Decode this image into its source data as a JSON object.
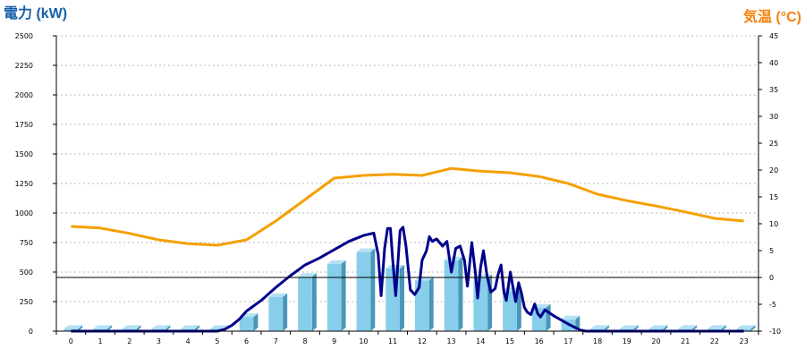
{
  "chart_data": {
    "type": "bar+line",
    "left_axis_title": "電力 (kW)",
    "right_axis_title": "気温 (°C)",
    "left_axis_color": "#1560a8",
    "right_axis_color": "#f5820d",
    "ylim_left": [
      0,
      2500
    ],
    "ylim_right": [
      -10,
      45
    ],
    "y_ticks_left": [
      "0",
      "250",
      "500",
      "750",
      "1000",
      "1250",
      "1500",
      "1750",
      "2000",
      "2250",
      "2500"
    ],
    "y_ticks_right": [
      "-10",
      "-5",
      "0",
      "5",
      "10",
      "15",
      "20",
      "25",
      "30",
      "35",
      "40",
      "45"
    ],
    "categories": [
      "0",
      "1",
      "2",
      "3",
      "4",
      "5",
      "6",
      "7",
      "8",
      "9",
      "10",
      "11",
      "12",
      "13",
      "14",
      "15",
      "16",
      "17",
      "18",
      "19",
      "20",
      "21",
      "22",
      "23"
    ],
    "grid": "horizontal dashed",
    "series": [
      {
        "kind": "bar",
        "axis": "left",
        "color": "#87ceeb",
        "values": [
          20,
          20,
          20,
          20,
          20,
          20,
          120,
          290,
          460,
          570,
          670,
          530,
          430,
          600,
          450,
          340,
          200,
          100,
          20,
          20,
          20,
          20,
          20,
          20
        ]
      },
      {
        "kind": "line",
        "axis": "left",
        "color": "#00008b",
        "points": [
          [
            0,
            0
          ],
          [
            5,
            0
          ],
          [
            5.25,
            15
          ],
          [
            5.5,
            50
          ],
          [
            5.75,
            100
          ],
          [
            6,
            170
          ],
          [
            6.5,
            260
          ],
          [
            7,
            370
          ],
          [
            7.5,
            470
          ],
          [
            8,
            560
          ],
          [
            8.5,
            620
          ],
          [
            9,
            690
          ],
          [
            9.5,
            760
          ],
          [
            10,
            810
          ],
          [
            10.35,
            830
          ],
          [
            10.5,
            650
          ],
          [
            10.6,
            300
          ],
          [
            10.72,
            700
          ],
          [
            10.82,
            870
          ],
          [
            10.92,
            870
          ],
          [
            11,
            600
          ],
          [
            11.1,
            300
          ],
          [
            11.25,
            850
          ],
          [
            11.35,
            880
          ],
          [
            11.45,
            720
          ],
          [
            11.6,
            350
          ],
          [
            11.75,
            310
          ],
          [
            11.9,
            370
          ],
          [
            12,
            600
          ],
          [
            12.15,
            680
          ],
          [
            12.25,
            800
          ],
          [
            12.35,
            760
          ],
          [
            12.5,
            780
          ],
          [
            12.7,
            720
          ],
          [
            12.85,
            760
          ],
          [
            13,
            500
          ],
          [
            13.15,
            700
          ],
          [
            13.3,
            720
          ],
          [
            13.45,
            600
          ],
          [
            13.55,
            380
          ],
          [
            13.7,
            750
          ],
          [
            13.82,
            500
          ],
          [
            13.9,
            280
          ],
          [
            14,
            540
          ],
          [
            14.1,
            680
          ],
          [
            14.22,
            470
          ],
          [
            14.35,
            330
          ],
          [
            14.5,
            360
          ],
          [
            14.6,
            480
          ],
          [
            14.7,
            560
          ],
          [
            14.8,
            330
          ],
          [
            14.88,
            260
          ],
          [
            15.02,
            500
          ],
          [
            15.1,
            380
          ],
          [
            15.2,
            250
          ],
          [
            15.3,
            410
          ],
          [
            15.4,
            320
          ],
          [
            15.5,
            200
          ],
          [
            15.6,
            160
          ],
          [
            15.72,
            140
          ],
          [
            15.85,
            230
          ],
          [
            15.95,
            150
          ],
          [
            16.05,
            120
          ],
          [
            16.2,
            180
          ],
          [
            16.5,
            130
          ],
          [
            17,
            60
          ],
          [
            17.4,
            10
          ],
          [
            17.6,
            0
          ],
          [
            23,
            0
          ]
        ]
      },
      {
        "kind": "line",
        "axis": "right",
        "color": "#f5a000",
        "points": [
          [
            0,
            9.5
          ],
          [
            1,
            9.2
          ],
          [
            2,
            8.2
          ],
          [
            3,
            7
          ],
          [
            4,
            6.3
          ],
          [
            5,
            6
          ],
          [
            6,
            7
          ],
          [
            7,
            10.5
          ],
          [
            8,
            14.5
          ],
          [
            9,
            18.5
          ],
          [
            10,
            19
          ],
          [
            11,
            19.2
          ],
          [
            12,
            19
          ],
          [
            13,
            20.3
          ],
          [
            14,
            19.8
          ],
          [
            15,
            19.5
          ],
          [
            16,
            18.8
          ],
          [
            17,
            17.5
          ],
          [
            18,
            15.5
          ],
          [
            19,
            14.3
          ],
          [
            20,
            13.3
          ],
          [
            21,
            12.2
          ],
          [
            22,
            11
          ],
          [
            23,
            10.5
          ]
        ]
      }
    ]
  }
}
